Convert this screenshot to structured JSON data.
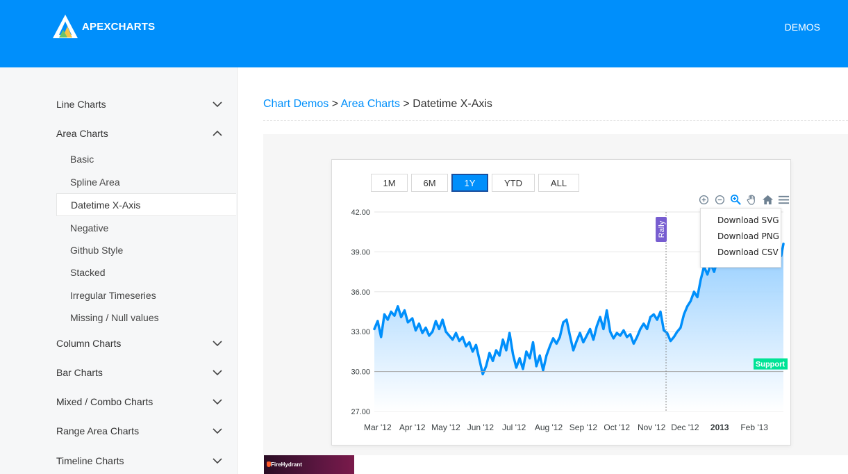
{
  "header": {
    "brand": "APEXCHARTS",
    "nav_demos": "DEMOS",
    "colors": {
      "header_bg": "#008ffb"
    }
  },
  "sidebar": {
    "categories": [
      {
        "label": "Line Charts",
        "expanded": false
      },
      {
        "label": "Area Charts",
        "expanded": true
      },
      {
        "label": "Column Charts",
        "expanded": false
      },
      {
        "label": "Bar Charts",
        "expanded": false
      },
      {
        "label": "Mixed / Combo Charts",
        "expanded": false
      },
      {
        "label": "Range Area Charts",
        "expanded": false
      },
      {
        "label": "Timeline Charts",
        "expanded": false
      }
    ],
    "area_items": [
      "Basic",
      "Spline Area",
      "Datetime X-Axis",
      "Negative",
      "Github Style",
      "Stacked",
      "Irregular Timeseries",
      "Missing / Null values"
    ],
    "active_item": "Datetime X-Axis"
  },
  "breadcrumb": {
    "link1": "Chart Demos",
    "sep1": " > ",
    "link2": "Area Charts",
    "sep2": " > ",
    "current": "Datetime X-Axis"
  },
  "range_buttons": [
    "1M",
    "6M",
    "1Y",
    "YTD",
    "ALL"
  ],
  "active_range": "1Y",
  "toolbar_icons": [
    "zoom-in-icon",
    "zoom-out-icon",
    "selection-zoom-icon",
    "pan-hand-icon",
    "reset-home-icon",
    "menu-icon"
  ],
  "menu": {
    "items": [
      "Download SVG",
      "Download PNG",
      "Download CSV"
    ]
  },
  "chart_data": {
    "type": "area",
    "title": "",
    "xlabel": "",
    "ylabel": "",
    "ylim": [
      27,
      42
    ],
    "yticks": [
      "42.00",
      "39.00",
      "36.00",
      "33.00",
      "30.00",
      "27.00"
    ],
    "xticks": [
      "Mar '12",
      "Apr '12",
      "May '12",
      "Jun '12",
      "Jul '12",
      "Aug '12",
      "Sep '12",
      "Oct '12",
      "Nov '12",
      "Dec '12",
      "2013",
      "Feb '13"
    ],
    "xlim": [
      "2012-02-27",
      "2013-02-27"
    ],
    "grid": true,
    "series": [
      {
        "points": [
          [
            "2012-02-27",
            33.2
          ],
          [
            "2012-03-01",
            33.8
          ],
          [
            "2012-03-04",
            32.6
          ],
          [
            "2012-03-07",
            34.3
          ],
          [
            "2012-03-10",
            33.9
          ],
          [
            "2012-03-13",
            34.5
          ],
          [
            "2012-03-16",
            34.2
          ],
          [
            "2012-03-19",
            34.9
          ],
          [
            "2012-03-22",
            34.1
          ],
          [
            "2012-03-25",
            34.6
          ],
          [
            "2012-03-28",
            33.7
          ],
          [
            "2012-04-01",
            34.0
          ],
          [
            "2012-04-04",
            33.1
          ],
          [
            "2012-04-07",
            33.6
          ],
          [
            "2012-04-10",
            32.9
          ],
          [
            "2012-04-13",
            33.3
          ],
          [
            "2012-04-16",
            32.7
          ],
          [
            "2012-04-19",
            33.0
          ],
          [
            "2012-04-22",
            33.8
          ],
          [
            "2012-04-25",
            33.2
          ],
          [
            "2012-04-28",
            33.9
          ],
          [
            "2012-05-01",
            33.0
          ],
          [
            "2012-05-04",
            32.7
          ],
          [
            "2012-05-07",
            32.4
          ],
          [
            "2012-05-10",
            32.9
          ],
          [
            "2012-05-13",
            32.3
          ],
          [
            "2012-05-16",
            32.6
          ],
          [
            "2012-05-19",
            31.9
          ],
          [
            "2012-05-22",
            32.2
          ],
          [
            "2012-05-25",
            31.5
          ],
          [
            "2012-05-28",
            32.0
          ],
          [
            "2012-05-31",
            30.9
          ],
          [
            "2012-06-03",
            29.8
          ],
          [
            "2012-06-06",
            30.4
          ],
          [
            "2012-06-09",
            31.4
          ],
          [
            "2012-06-12",
            30.8
          ],
          [
            "2012-06-15",
            31.6
          ],
          [
            "2012-06-18",
            31.2
          ],
          [
            "2012-06-21",
            32.4
          ],
          [
            "2012-06-24",
            31.6
          ],
          [
            "2012-06-27",
            32.9
          ],
          [
            "2012-06-30",
            31.3
          ],
          [
            "2012-07-03",
            30.3
          ],
          [
            "2012-07-06",
            31.0
          ],
          [
            "2012-07-09",
            30.2
          ],
          [
            "2012-07-12",
            31.5
          ],
          [
            "2012-07-15",
            31.0
          ],
          [
            "2012-07-18",
            32.2
          ],
          [
            "2012-07-21",
            30.4
          ],
          [
            "2012-07-24",
            31.2
          ],
          [
            "2012-07-27",
            30.1
          ],
          [
            "2012-07-30",
            31.2
          ],
          [
            "2012-08-02",
            31.9
          ],
          [
            "2012-08-05",
            32.5
          ],
          [
            "2012-08-08",
            32.1
          ],
          [
            "2012-08-11",
            32.6
          ],
          [
            "2012-08-14",
            33.7
          ],
          [
            "2012-08-17",
            33.9
          ],
          [
            "2012-08-20",
            32.7
          ],
          [
            "2012-08-23",
            31.6
          ],
          [
            "2012-08-26",
            32.3
          ],
          [
            "2012-08-29",
            32.9
          ],
          [
            "2012-09-01",
            32.2
          ],
          [
            "2012-09-04",
            32.7
          ],
          [
            "2012-09-07",
            33.2
          ],
          [
            "2012-09-10",
            32.4
          ],
          [
            "2012-09-13",
            33.4
          ],
          [
            "2012-09-16",
            34.1
          ],
          [
            "2012-09-19",
            33.2
          ],
          [
            "2012-09-22",
            34.6
          ],
          [
            "2012-09-25",
            33.0
          ],
          [
            "2012-09-28",
            32.5
          ],
          [
            "2012-10-01",
            32.9
          ],
          [
            "2012-10-04",
            32.7
          ],
          [
            "2012-10-07",
            33.1
          ],
          [
            "2012-10-10",
            32.6
          ],
          [
            "2012-10-13",
            32.8
          ],
          [
            "2012-10-16",
            32.1
          ],
          [
            "2012-10-19",
            32.6
          ],
          [
            "2012-10-22",
            33.2
          ],
          [
            "2012-10-25",
            33.6
          ],
          [
            "2012-10-28",
            33.2
          ],
          [
            "2012-10-31",
            34.1
          ],
          [
            "2012-11-03",
            34.3
          ],
          [
            "2012-11-06",
            33.9
          ],
          [
            "2012-11-09",
            34.5
          ],
          [
            "2012-11-12",
            33.1
          ],
          [
            "2012-11-15",
            32.9
          ],
          [
            "2012-11-18",
            32.3
          ],
          [
            "2012-11-21",
            32.6
          ],
          [
            "2012-11-24",
            33.0
          ],
          [
            "2012-11-27",
            33.3
          ],
          [
            "2012-11-30",
            34.3
          ],
          [
            "2012-12-03",
            34.9
          ],
          [
            "2012-12-06",
            35.3
          ],
          [
            "2012-12-09",
            36.0
          ],
          [
            "2012-12-12",
            35.6
          ],
          [
            "2012-12-15",
            36.9
          ],
          [
            "2012-12-18",
            37.9
          ],
          [
            "2012-12-21",
            37.3
          ],
          [
            "2012-12-24",
            38.1
          ],
          [
            "2012-12-27",
            37.5
          ],
          [
            "2012-12-30",
            38.4
          ],
          [
            "2013-01-02",
            38.0
          ],
          [
            "2013-01-05",
            38.6
          ],
          [
            "2013-01-08",
            38.2
          ],
          [
            "2013-01-11",
            38.7
          ],
          [
            "2013-01-14",
            38.3
          ],
          [
            "2013-01-17",
            38.9
          ],
          [
            "2013-01-20",
            38.4
          ],
          [
            "2013-01-23",
            38.6
          ],
          [
            "2013-01-26",
            38.1
          ],
          [
            "2013-01-29",
            38.8
          ],
          [
            "2013-02-01",
            38.3
          ],
          [
            "2013-02-04",
            38.7
          ],
          [
            "2013-02-07",
            38.4
          ],
          [
            "2013-02-10",
            38.9
          ],
          [
            "2013-02-13",
            38.6
          ],
          [
            "2013-02-16",
            38.9
          ],
          [
            "2013-02-19",
            38.5
          ],
          [
            "2013-02-22",
            39.0
          ],
          [
            "2013-02-25",
            38.7
          ],
          [
            "2013-02-27",
            39.6
          ]
        ]
      }
    ],
    "annotations": {
      "xaxis": {
        "label": "Rally",
        "x": "2012-11-14",
        "color": "#775dd0"
      },
      "yaxis": {
        "label": "Support",
        "y": 30,
        "color": "#00e396"
      }
    },
    "colors": {
      "line": "#008ffb",
      "fill_top": "#8ecbff",
      "fill_bottom": "#ffffff"
    }
  },
  "ad": {
    "label": "FireHydrant"
  }
}
